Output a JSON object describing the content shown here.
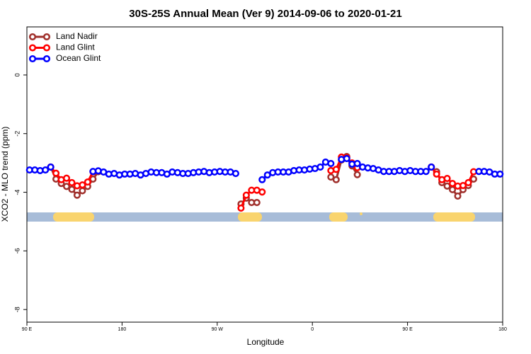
{
  "chart_data": {
    "type": "line",
    "title": "30S-25S Annual Mean (Ver 9)   2014-09-06 to 2020-01-21",
    "xlabel": "Longitude",
    "ylabel": "XCO2 - MLO trend (ppm)",
    "x": [
      92.5,
      97.5,
      102.5,
      107.5,
      112.5,
      117.5,
      122.5,
      127.5,
      132.5,
      137.5,
      142.5,
      147.5,
      152.5,
      157.5,
      162.5,
      167.5,
      172.5,
      177.5,
      182.5,
      187.5,
      192.5,
      197.5,
      202.5,
      207.5,
      212.5,
      217.5,
      222.5,
      227.5,
      232.5,
      237.5,
      242.5,
      247.5,
      252.5,
      257.5,
      262.5,
      267.5,
      272.5,
      277.5,
      282.5,
      287.5,
      292.5,
      297.5,
      302.5,
      307.5,
      312.5,
      317.5,
      322.5,
      327.5,
      332.5,
      337.5,
      342.5,
      347.5,
      352.5,
      357.5,
      362.5,
      367.5,
      372.5,
      377.5,
      382.5,
      387.5,
      392.5,
      397.5,
      402.5,
      407.5,
      412.5,
      417.5,
      422.5,
      427.5,
      432.5,
      437.5,
      442.5,
      447.5,
      452.5,
      457.5,
      462.5,
      467.5,
      472.5,
      477.5,
      482.5,
      487.5,
      492.5,
      497.5,
      502.5,
      507.5,
      512.5,
      517.5,
      522.5,
      527.5,
      532.5,
      537.5
    ],
    "series": [
      {
        "name": "Land Nadir",
        "color": "#a0302c",
        "values": [
          null,
          null,
          null,
          null,
          -3.14,
          -3.55,
          -3.7,
          -3.8,
          -3.9,
          -4.1,
          -3.95,
          -3.8,
          -3.55,
          -3.3,
          null,
          null,
          null,
          null,
          null,
          null,
          null,
          null,
          null,
          null,
          null,
          null,
          null,
          null,
          null,
          null,
          null,
          null,
          null,
          null,
          null,
          null,
          null,
          null,
          null,
          null,
          -4.4,
          -4.2,
          -4.35,
          -4.35,
          null,
          null,
          null,
          null,
          null,
          null,
          null,
          null,
          null,
          null,
          null,
          null,
          null,
          -3.48,
          -3.57,
          -2.9,
          -2.78,
          -3.1,
          -3.4,
          null,
          null,
          null,
          null,
          null,
          null,
          null,
          null,
          null,
          null,
          null,
          null,
          null,
          -3.14,
          -3.3,
          -3.67,
          -3.79,
          -3.91,
          -4.13,
          -3.91,
          -3.77,
          -3.55,
          null,
          null,
          null,
          null,
          null
        ]
      },
      {
        "name": "Land Glint",
        "color": "#ff0000",
        "values": [
          null,
          null,
          null,
          null,
          -3.14,
          -3.35,
          -3.57,
          -3.52,
          -3.67,
          -3.78,
          -3.75,
          -3.65,
          -3.3,
          null,
          null,
          null,
          null,
          null,
          null,
          null,
          null,
          null,
          null,
          null,
          null,
          null,
          null,
          null,
          null,
          null,
          null,
          null,
          null,
          null,
          null,
          null,
          null,
          null,
          null,
          null,
          -4.54,
          -4.1,
          -3.93,
          -3.93,
          -3.99,
          null,
          null,
          null,
          null,
          null,
          null,
          null,
          null,
          null,
          null,
          null,
          null,
          -3.26,
          -3.22,
          -2.8,
          -2.82,
          -3.0,
          -3.16,
          null,
          null,
          null,
          null,
          null,
          null,
          null,
          null,
          null,
          null,
          null,
          null,
          null,
          -3.14,
          -3.38,
          -3.57,
          -3.53,
          -3.7,
          -3.79,
          -3.77,
          -3.67,
          -3.3,
          null,
          null,
          null,
          null,
          null
        ]
      },
      {
        "name": "Ocean Glint",
        "color": "#0000ff",
        "values": [
          -3.24,
          -3.24,
          -3.26,
          -3.24,
          -3.14,
          null,
          null,
          null,
          null,
          null,
          null,
          null,
          -3.29,
          -3.27,
          -3.31,
          -3.38,
          -3.36,
          -3.41,
          -3.38,
          -3.38,
          -3.36,
          -3.41,
          -3.36,
          -3.31,
          -3.33,
          -3.33,
          -3.38,
          -3.31,
          -3.33,
          -3.36,
          -3.36,
          -3.33,
          -3.31,
          -3.29,
          -3.33,
          -3.31,
          -3.29,
          -3.31,
          -3.31,
          -3.36,
          null,
          null,
          null,
          null,
          -3.57,
          -3.41,
          -3.33,
          -3.31,
          -3.31,
          -3.31,
          -3.26,
          -3.24,
          -3.24,
          -3.21,
          -3.19,
          -3.14,
          -2.97,
          -3.02,
          null,
          -2.88,
          -2.85,
          -3.04,
          -3.02,
          -3.14,
          -3.17,
          -3.19,
          -3.24,
          -3.29,
          -3.29,
          -3.29,
          -3.26,
          -3.29,
          -3.26,
          -3.29,
          -3.29,
          -3.29,
          -3.14,
          null,
          null,
          null,
          null,
          null,
          null,
          null,
          null,
          -3.29,
          -3.29,
          -3.31,
          -3.38,
          -3.38
        ]
      }
    ],
    "xlim": [
      90,
      540
    ],
    "xticks": [
      {
        "value": 90,
        "label": "90 E"
      },
      180,
      {
        "value": 270,
        "label": "90 W"
      },
      {
        "value": 360,
        "label": "0"
      },
      {
        "value": 450,
        "label": "90 E"
      },
      {
        "value": 540,
        "label": "180"
      }
    ],
    "ylim": [
      -8.43,
      1.64
    ],
    "yticks": [
      0,
      -2,
      -4,
      -6,
      -8
    ],
    "legend": "top-left"
  }
}
